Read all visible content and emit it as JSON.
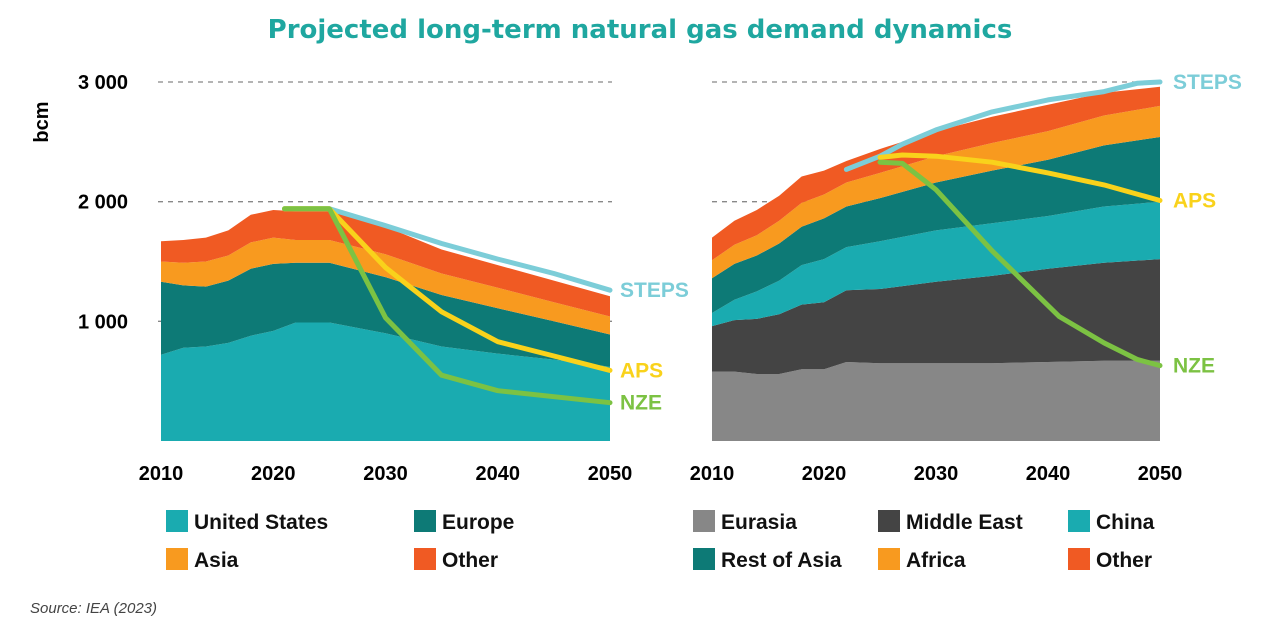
{
  "title": "Projected long-term natural gas demand dynamics",
  "source": "Source: IEA (2023)",
  "colors": {
    "united_states": "#1aabb0",
    "europe": "#0d7a76",
    "asia": "#f89a1f",
    "other": "#f05a23",
    "eurasia": "#878787",
    "middle_east": "#444444",
    "china": "#1aabb0",
    "rest_of_asia": "#0d7a76",
    "africa": "#f89a1f",
    "steps": "#7ccdd8",
    "aps": "#f9d21b",
    "nze": "#7cc243"
  },
  "chart_data": [
    {
      "type": "area",
      "stacked": true,
      "ylabel": "bcm",
      "xlim": [
        2010,
        2050
      ],
      "ylim": [
        0,
        3000
      ],
      "yticks": [
        1000,
        2000,
        3000
      ],
      "ytick_labels": [
        "1 000",
        "2 000",
        "3 000"
      ],
      "xticks": [
        2010,
        2020,
        2030,
        2040,
        2050
      ],
      "xtick_labels": [
        "2010",
        "2020",
        "2030",
        "2040",
        "2050"
      ],
      "grid": "dashed horizontal",
      "x": [
        2010,
        2012,
        2014,
        2016,
        2018,
        2020,
        2022,
        2025,
        2030,
        2035,
        2040,
        2045,
        2050
      ],
      "series": [
        {
          "name": "United States",
          "color_key": "united_states",
          "values": [
            720,
            780,
            790,
            820,
            880,
            920,
            990,
            990,
            900,
            790,
            730,
            680,
            620
          ]
        },
        {
          "name": "Europe",
          "color_key": "europe",
          "values": [
            610,
            520,
            500,
            520,
            560,
            560,
            500,
            500,
            470,
            430,
            380,
            320,
            270
          ]
        },
        {
          "name": "Asia",
          "color_key": "asia",
          "values": [
            170,
            190,
            210,
            210,
            220,
            220,
            190,
            190,
            190,
            180,
            170,
            160,
            150
          ]
        },
        {
          "name": "Other",
          "color_key": "other",
          "values": [
            170,
            190,
            200,
            210,
            230,
            230,
            240,
            240,
            230,
            200,
            190,
            180,
            170
          ]
        }
      ],
      "scenarios": [
        {
          "name": "STEPS",
          "color_key": "steps",
          "x": [
            2021,
            2025,
            2030,
            2035,
            2040,
            2045,
            2050
          ],
          "values": [
            1940,
            1940,
            1800,
            1650,
            1520,
            1400,
            1260
          ]
        },
        {
          "name": "APS",
          "color_key": "aps",
          "x": [
            2021,
            2025,
            2030,
            2035,
            2040,
            2045,
            2050
          ],
          "values": [
            1940,
            1940,
            1450,
            1080,
            830,
            710,
            590
          ]
        },
        {
          "name": "NZE",
          "color_key": "nze",
          "x": [
            2021,
            2025,
            2030,
            2035,
            2040,
            2045,
            2050
          ],
          "values": [
            1940,
            1940,
            1030,
            550,
            420,
            370,
            320
          ]
        }
      ],
      "legend": [
        {
          "label": "United States",
          "color_key": "united_states"
        },
        {
          "label": "Europe",
          "color_key": "europe"
        },
        {
          "label": "Asia",
          "color_key": "asia"
        },
        {
          "label": "Other",
          "color_key": "other"
        }
      ]
    },
    {
      "type": "area",
      "stacked": true,
      "xlim": [
        2010,
        2050
      ],
      "ylim": [
        0,
        3000
      ],
      "xticks": [
        2010,
        2020,
        2030,
        2040,
        2050
      ],
      "xtick_labels": [
        "2010",
        "2020",
        "2030",
        "2040",
        "2050"
      ],
      "grid": "dashed horizontal",
      "x": [
        2010,
        2012,
        2014,
        2016,
        2018,
        2020,
        2022,
        2025,
        2030,
        2035,
        2040,
        2045,
        2050
      ],
      "series": [
        {
          "name": "Eurasia",
          "color_key": "eurasia",
          "values": [
            580,
            580,
            560,
            560,
            600,
            600,
            660,
            650,
            650,
            650,
            660,
            670,
            670
          ]
        },
        {
          "name": "Middle East",
          "color_key": "middle_east",
          "values": [
            380,
            430,
            460,
            500,
            540,
            560,
            600,
            620,
            680,
            730,
            780,
            820,
            850
          ]
        },
        {
          "name": "China",
          "color_key": "china",
          "values": [
            110,
            170,
            230,
            280,
            330,
            360,
            360,
            400,
            430,
            440,
            440,
            470,
            480
          ]
        },
        {
          "name": "Rest of Asia",
          "color_key": "rest_of_asia",
          "values": [
            290,
            300,
            300,
            310,
            320,
            340,
            340,
            360,
            400,
            440,
            470,
            510,
            540
          ]
        },
        {
          "name": "Africa",
          "color_key": "africa",
          "values": [
            150,
            160,
            170,
            190,
            200,
            200,
            200,
            210,
            220,
            230,
            240,
            250,
            260
          ]
        },
        {
          "name": "Other",
          "color_key": "other",
          "values": [
            190,
            200,
            210,
            210,
            220,
            200,
            180,
            200,
            210,
            220,
            220,
            190,
            160
          ]
        }
      ],
      "scenarios": [
        {
          "name": "STEPS",
          "color_key": "steps",
          "x": [
            2022,
            2025,
            2027,
            2030,
            2035,
            2040,
            2045,
            2048,
            2050
          ],
          "values": [
            2270,
            2380,
            2480,
            2600,
            2750,
            2850,
            2920,
            2990,
            3000
          ]
        },
        {
          "name": "APS",
          "color_key": "aps",
          "x": [
            2025,
            2027,
            2030,
            2035,
            2040,
            2045,
            2050
          ],
          "values": [
            2370,
            2390,
            2380,
            2330,
            2240,
            2140,
            2010
          ]
        },
        {
          "name": "NZE",
          "color_key": "nze",
          "x": [
            2025,
            2027,
            2030,
            2035,
            2041,
            2045,
            2048,
            2050
          ],
          "values": [
            2330,
            2320,
            2100,
            1590,
            1040,
            820,
            680,
            630
          ]
        }
      ],
      "legend": [
        {
          "label": "Eurasia",
          "color_key": "eurasia"
        },
        {
          "label": "Middle East",
          "color_key": "middle_east"
        },
        {
          "label": "China",
          "color_key": "china"
        },
        {
          "label": "Rest of Asia",
          "color_key": "rest_of_asia"
        },
        {
          "label": "Africa",
          "color_key": "africa"
        },
        {
          "label": "Other",
          "color_key": "other"
        }
      ]
    }
  ]
}
